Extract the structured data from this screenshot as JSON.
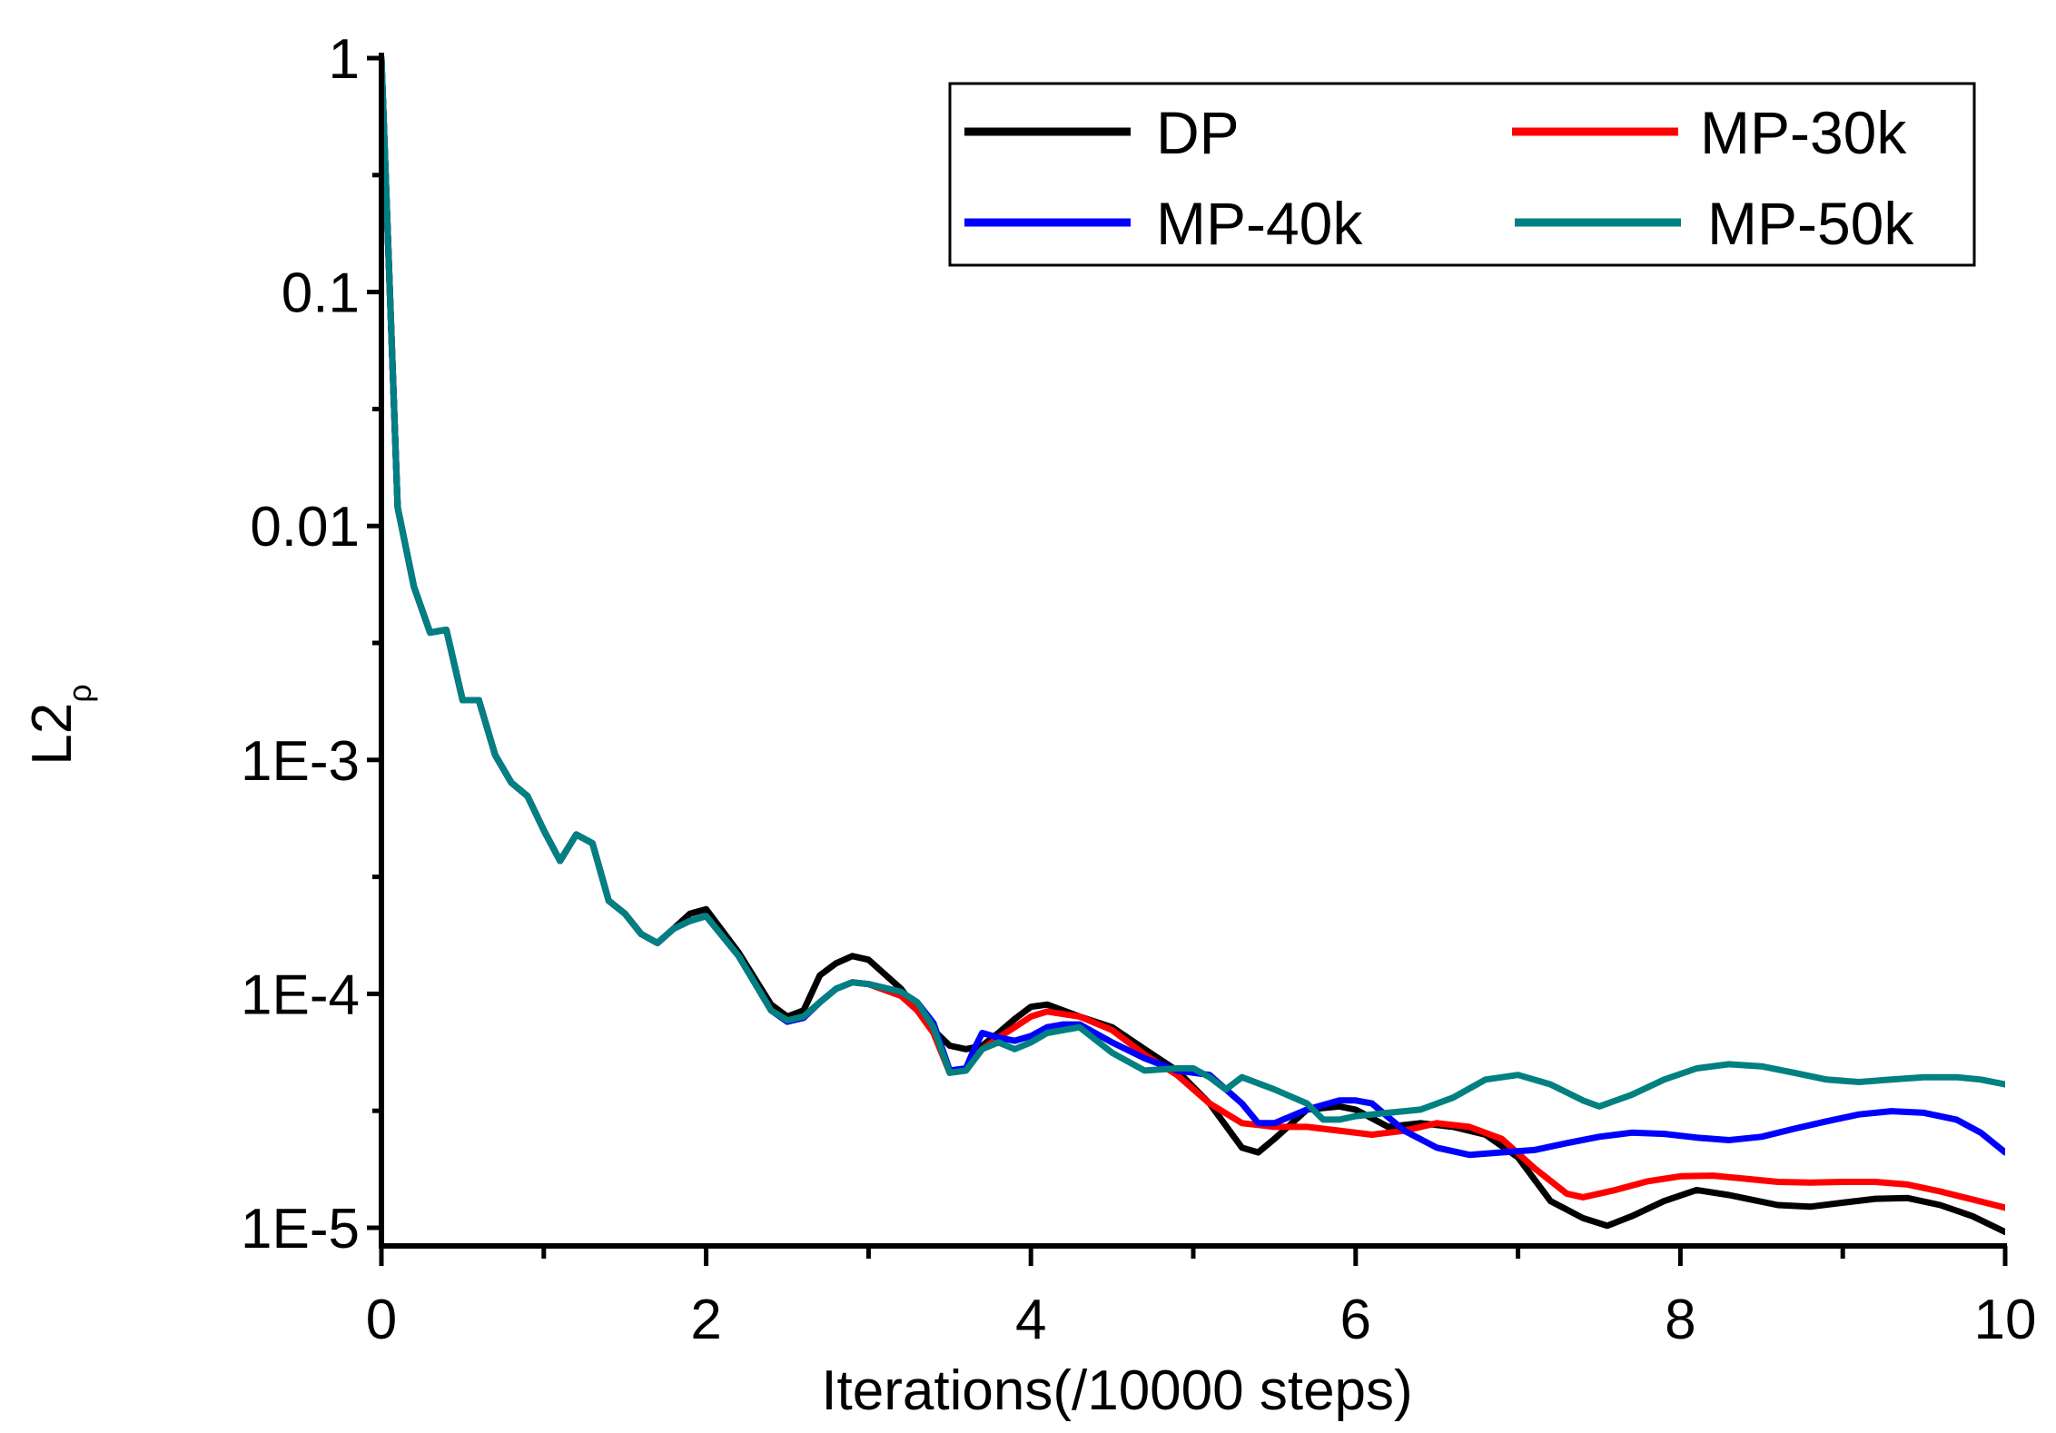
{
  "chart_data": {
    "type": "line",
    "title": "",
    "xlabel": "Iterations(/10000 steps)",
    "ylabel": "L2",
    "ylabel_subscript": "ρ",
    "xlim": [
      0,
      10
    ],
    "ylim": [
      8e-06,
      1
    ],
    "yscale": "log",
    "grid": false,
    "legend_position": "top-right",
    "x_ticks": [
      0,
      2,
      4,
      6,
      8,
      10
    ],
    "x_tick_labels": [
      "0",
      "2",
      "4",
      "6",
      "8",
      "10"
    ],
    "y_ticks": [
      1e-05,
      0.0001,
      0.001,
      0.01,
      0.1,
      1
    ],
    "y_tick_labels": [
      "1E-5",
      "1E-4",
      "1E-3",
      "0.01",
      "0.1",
      "1"
    ],
    "series": [
      {
        "name": "DP",
        "color": "#000000",
        "x": [
          0,
          0.1,
          0.2,
          0.3,
          0.4,
          0.5,
          0.6,
          0.7,
          0.8,
          0.9,
          1.0,
          1.1,
          1.2,
          1.3,
          1.4,
          1.5,
          1.6,
          1.7,
          1.8,
          1.9,
          2.0,
          2.2,
          2.4,
          2.5,
          2.6,
          2.7,
          2.8,
          2.9,
          3.0,
          3.2,
          3.3,
          3.4,
          3.5,
          3.6,
          3.7,
          3.8,
          3.9,
          4.0,
          4.1,
          4.3,
          4.5,
          4.7,
          4.9,
          5.1,
          5.3,
          5.4,
          5.5,
          5.7,
          5.9,
          6.0,
          6.2,
          6.4,
          6.6,
          6.8,
          7.0,
          7.2,
          7.4,
          7.55,
          7.7,
          7.9,
          8.1,
          8.3,
          8.6,
          8.8,
          9.0,
          9.2,
          9.4,
          9.6,
          9.8,
          10.0
        ],
        "y": [
          1.0,
          0.012,
          0.0055,
          0.0035,
          0.0036,
          0.0018,
          0.0018,
          0.00105,
          0.0008,
          0.0007,
          0.0005,
          0.00037,
          0.00048,
          0.00044,
          0.00025,
          0.00022,
          0.00018,
          0.000165,
          0.00019,
          0.00022,
          0.00023,
          0.00015,
          9e-05,
          8e-05,
          8.5e-05,
          0.00012,
          0.000135,
          0.000145,
          0.00014,
          0.000105,
          8.5e-05,
          7e-05,
          6e-05,
          5.8e-05,
          6e-05,
          6.8e-05,
          7.8e-05,
          8.8e-05,
          9e-05,
          8e-05,
          7.2e-05,
          5.8e-05,
          4.7e-05,
          3.4e-05,
          2.2e-05,
          2.1e-05,
          2.4e-05,
          3.2e-05,
          3.3e-05,
          3.2e-05,
          2.7e-05,
          2.8e-05,
          2.7e-05,
          2.5e-05,
          2e-05,
          1.3e-05,
          1.1e-05,
          1.02e-05,
          1.12e-05,
          1.3e-05,
          1.45e-05,
          1.38e-05,
          1.25e-05,
          1.23e-05,
          1.28e-05,
          1.33e-05,
          1.34e-05,
          1.25e-05,
          1.12e-05,
          9.6e-06
        ]
      },
      {
        "name": "MP-30k",
        "color": "#ff0000",
        "x": [
          0,
          0.1,
          0.2,
          0.3,
          0.4,
          0.5,
          0.6,
          0.7,
          0.8,
          0.9,
          1.0,
          1.1,
          1.2,
          1.3,
          1.4,
          1.5,
          1.6,
          1.7,
          1.8,
          1.9,
          2.0,
          2.2,
          2.4,
          2.5,
          2.6,
          2.7,
          2.8,
          2.9,
          3.0,
          3.2,
          3.3,
          3.4,
          3.5,
          3.6,
          3.7,
          3.8,
          3.9,
          4.0,
          4.1,
          4.3,
          4.5,
          4.7,
          4.9,
          5.1,
          5.3,
          5.5,
          5.7,
          5.9,
          6.1,
          6.3,
          6.5,
          6.7,
          6.9,
          7.1,
          7.3,
          7.4,
          7.6,
          7.8,
          8.0,
          8.2,
          8.4,
          8.6,
          8.8,
          9.0,
          9.2,
          9.4,
          9.6,
          9.8,
          10.0
        ],
        "y": [
          1.0,
          0.012,
          0.0055,
          0.0035,
          0.0036,
          0.0018,
          0.0018,
          0.00105,
          0.0008,
          0.0007,
          0.0005,
          0.00037,
          0.00048,
          0.00044,
          0.00025,
          0.00022,
          0.00018,
          0.000165,
          0.00019,
          0.000205,
          0.000215,
          0.000145,
          8.5e-05,
          7.7e-05,
          8e-05,
          9.2e-05,
          0.000105,
          0.000112,
          0.00011,
          9.8e-05,
          8.5e-05,
          6.8e-05,
          4.6e-05,
          4.7e-05,
          5.8e-05,
          6.5e-05,
          7.2e-05,
          8e-05,
          8.4e-05,
          8e-05,
          7e-05,
          5.5e-05,
          4.5e-05,
          3.4e-05,
          2.8e-05,
          2.7e-05,
          2.7e-05,
          2.6e-05,
          2.5e-05,
          2.6e-05,
          2.8e-05,
          2.7e-05,
          2.4e-05,
          1.8e-05,
          1.4e-05,
          1.35e-05,
          1.45e-05,
          1.58e-05,
          1.66e-05,
          1.67e-05,
          1.62e-05,
          1.57e-05,
          1.56e-05,
          1.57e-05,
          1.57e-05,
          1.53e-05,
          1.43e-05,
          1.32e-05,
          1.22e-05
        ]
      },
      {
        "name": "MP-40k",
        "color": "#0000ff",
        "x": [
          0,
          0.1,
          0.2,
          0.3,
          0.4,
          0.5,
          0.6,
          0.7,
          0.8,
          0.9,
          1.0,
          1.1,
          1.2,
          1.3,
          1.4,
          1.5,
          1.6,
          1.7,
          1.8,
          1.9,
          2.0,
          2.2,
          2.4,
          2.5,
          2.6,
          2.7,
          2.8,
          2.9,
          3.0,
          3.2,
          3.3,
          3.4,
          3.5,
          3.6,
          3.65,
          3.7,
          3.8,
          3.9,
          4.0,
          4.1,
          4.2,
          4.3,
          4.5,
          4.7,
          4.9,
          5.1,
          5.3,
          5.4,
          5.5,
          5.7,
          5.9,
          6.0,
          6.1,
          6.3,
          6.5,
          6.7,
          6.9,
          7.1,
          7.3,
          7.5,
          7.7,
          7.9,
          8.1,
          8.3,
          8.5,
          8.7,
          8.9,
          9.1,
          9.3,
          9.5,
          9.7,
          9.85,
          10.0
        ],
        "y": [
          1.0,
          0.012,
          0.0055,
          0.0035,
          0.0036,
          0.0018,
          0.0018,
          0.00105,
          0.0008,
          0.0007,
          0.0005,
          0.00037,
          0.00048,
          0.00044,
          0.00025,
          0.00022,
          0.00018,
          0.000165,
          0.00019,
          0.000205,
          0.000215,
          0.000145,
          8.5e-05,
          7.6e-05,
          7.9e-05,
          9.2e-05,
          0.000105,
          0.000112,
          0.00011,
          0.000102,
          9.2e-05,
          7.5e-05,
          4.7e-05,
          4.8e-05,
          5.8e-05,
          6.8e-05,
          6.5e-05,
          6.3e-05,
          6.6e-05,
          7.2e-05,
          7.4e-05,
          7.4e-05,
          6.2e-05,
          5.3e-05,
          4.7e-05,
          4.5e-05,
          3.4e-05,
          2.8e-05,
          2.8e-05,
          3.2e-05,
          3.5e-05,
          3.5e-05,
          3.4e-05,
          2.6e-05,
          2.2e-05,
          2.05e-05,
          2.1e-05,
          2.15e-05,
          2.3e-05,
          2.45e-05,
          2.55e-05,
          2.52e-05,
          2.43e-05,
          2.37e-05,
          2.45e-05,
          2.65e-05,
          2.85e-05,
          3.05e-05,
          3.15e-05,
          3.1e-05,
          2.9e-05,
          2.55e-05,
          2.1e-05
        ]
      },
      {
        "name": "MP-50k",
        "color": "#008080",
        "x": [
          0,
          0.1,
          0.2,
          0.3,
          0.4,
          0.5,
          0.6,
          0.7,
          0.8,
          0.9,
          1.0,
          1.1,
          1.2,
          1.3,
          1.4,
          1.5,
          1.6,
          1.7,
          1.8,
          1.9,
          2.0,
          2.2,
          2.4,
          2.5,
          2.6,
          2.7,
          2.8,
          2.9,
          3.0,
          3.2,
          3.3,
          3.4,
          3.5,
          3.6,
          3.7,
          3.8,
          3.9,
          4.0,
          4.1,
          4.3,
          4.5,
          4.7,
          4.9,
          5.0,
          5.1,
          5.2,
          5.3,
          5.5,
          5.7,
          5.8,
          5.9,
          6.0,
          6.2,
          6.4,
          6.6,
          6.8,
          7.0,
          7.2,
          7.4,
          7.5,
          7.7,
          7.9,
          8.1,
          8.3,
          8.5,
          8.7,
          8.9,
          9.1,
          9.3,
          9.5,
          9.7,
          9.85,
          10.0
        ],
        "y": [
          1.0,
          0.012,
          0.0055,
          0.0035,
          0.0036,
          0.0018,
          0.0018,
          0.00105,
          0.0008,
          0.0007,
          0.0005,
          0.00037,
          0.00048,
          0.00044,
          0.00025,
          0.00022,
          0.00018,
          0.000165,
          0.00019,
          0.000205,
          0.000215,
          0.000145,
          8.5e-05,
          7.7e-05,
          8e-05,
          9.2e-05,
          0.000105,
          0.000112,
          0.00011,
          0.000102,
          9.2e-05,
          7.2e-05,
          4.6e-05,
          4.7e-05,
          5.8e-05,
          6.2e-05,
          5.8e-05,
          6.2e-05,
          6.8e-05,
          7.2e-05,
          5.6e-05,
          4.7e-05,
          4.8e-05,
          4.8e-05,
          4.4e-05,
          3.9e-05,
          4.4e-05,
          3.9e-05,
          3.4e-05,
          2.9e-05,
          2.9e-05,
          3e-05,
          3.1e-05,
          3.2e-05,
          3.6e-05,
          4.3e-05,
          4.5e-05,
          4.1e-05,
          3.5e-05,
          3.3e-05,
          3.7e-05,
          4.3e-05,
          4.8e-05,
          5e-05,
          4.9e-05,
          4.6e-05,
          4.3e-05,
          4.2e-05,
          4.3e-05,
          4.4e-05,
          4.4e-05,
          4.3e-05,
          4.1e-05
        ]
      }
    ]
  }
}
